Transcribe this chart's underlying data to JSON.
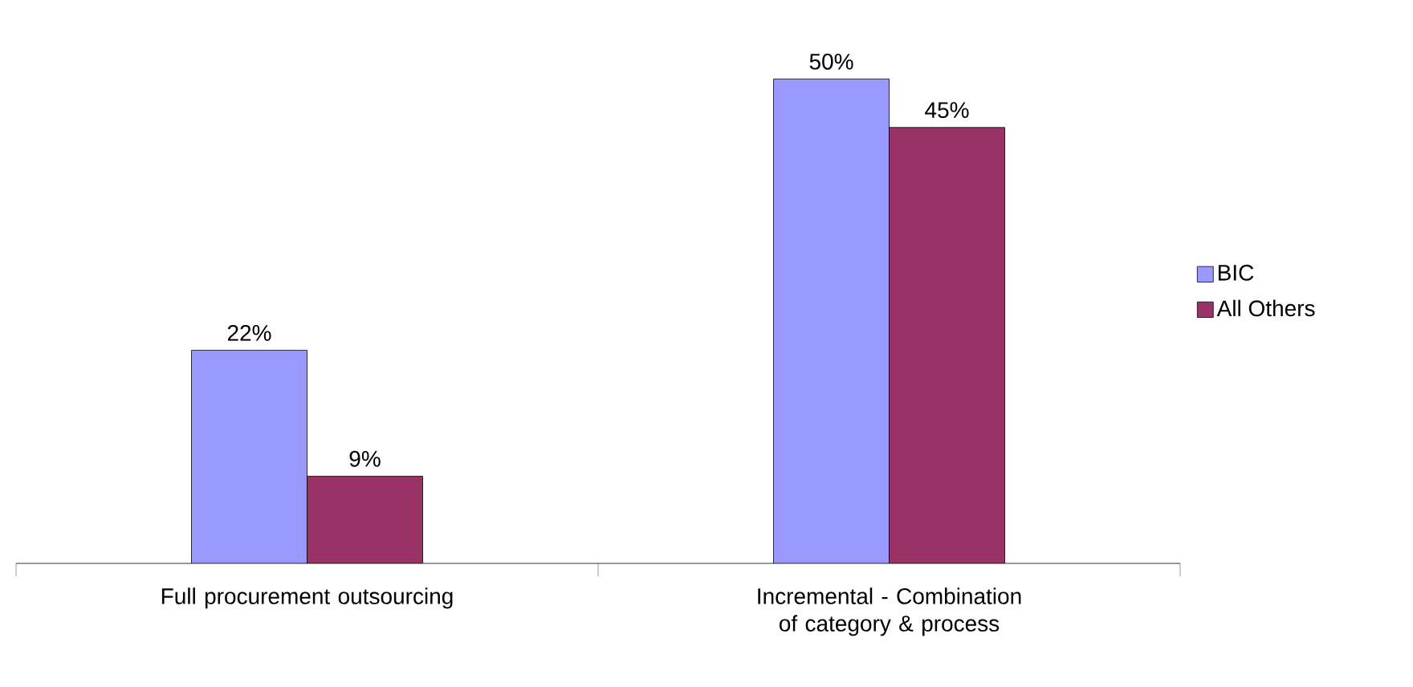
{
  "chart_data": {
    "type": "bar",
    "categories": [
      "Full procurement outsourcing",
      "Incremental - Combination of category & process"
    ],
    "series": [
      {
        "name": "BIC",
        "color": "#9999ff",
        "values": [
          22,
          50
        ],
        "value_labels": [
          "22%",
          "50%"
        ]
      },
      {
        "name": "All Others",
        "color": "#993366",
        "values": [
          9,
          45
        ],
        "value_labels": [
          "9%",
          "45%"
        ]
      }
    ],
    "legend": "right"
  }
}
